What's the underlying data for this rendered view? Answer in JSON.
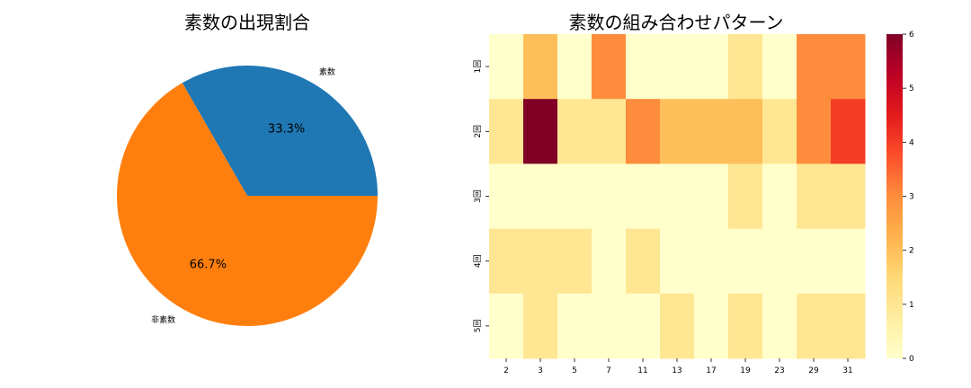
{
  "chart_data": [
    {
      "type": "pie",
      "title": "素数の出現割合",
      "slices": [
        {
          "label": "素数",
          "value": 33.3,
          "pct_label": "33.3%",
          "color": "#1f77b4"
        },
        {
          "label": "非素数",
          "value": 66.7,
          "pct_label": "66.7%",
          "color": "#ff7f0e"
        }
      ]
    },
    {
      "type": "heatmap",
      "title": "素数の組み合わせパターン",
      "x_categories": [
        "2",
        "3",
        "5",
        "7",
        "11",
        "13",
        "17",
        "19",
        "23",
        "29",
        "31"
      ],
      "y_categories": [
        "1回",
        "2回",
        "3回",
        "4回",
        "5回"
      ],
      "values": [
        [
          0,
          2,
          0,
          3,
          0,
          0,
          0,
          1,
          0,
          3,
          3
        ],
        [
          1,
          6,
          1,
          1,
          3,
          2,
          2,
          2,
          1,
          3,
          4
        ],
        [
          0,
          0,
          0,
          0,
          0,
          0,
          0,
          1,
          0,
          1,
          1
        ],
        [
          1,
          1,
          1,
          0,
          1,
          0,
          0,
          0,
          0,
          0,
          0
        ],
        [
          0,
          1,
          0,
          0,
          0,
          1,
          0,
          1,
          0,
          1,
          1
        ]
      ],
      "colorbar_range": [
        0,
        6
      ],
      "colorbar_ticks": [
        "0",
        "1",
        "2",
        "3",
        "4",
        "5",
        "6"
      ],
      "colormap": "YlOrRd"
    }
  ]
}
